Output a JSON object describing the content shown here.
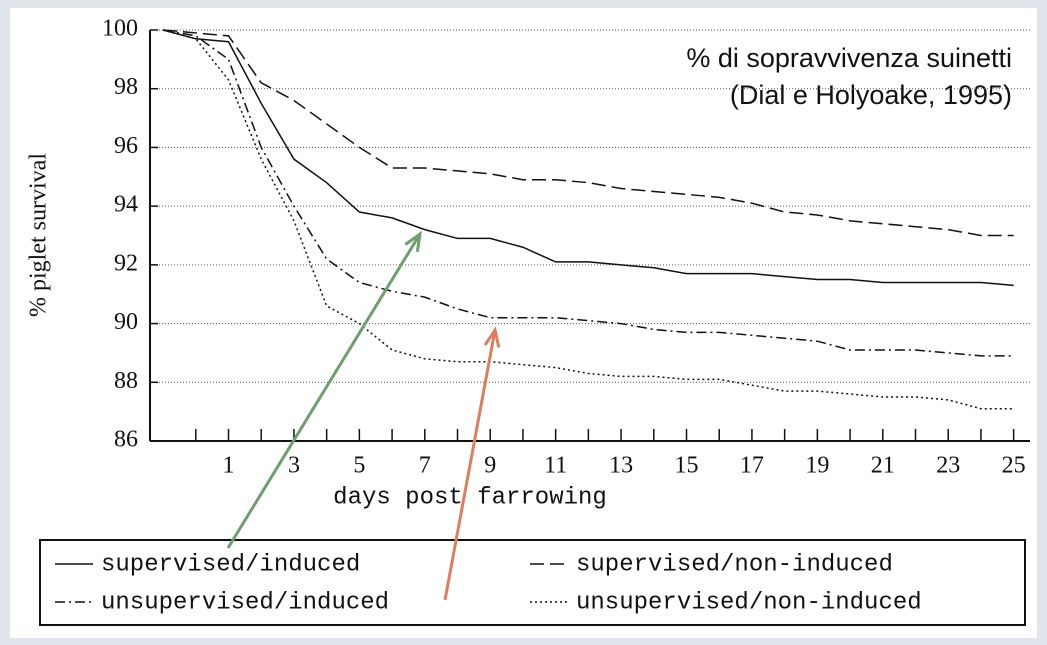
{
  "chart_data": {
    "type": "line",
    "annotation": [
      "% di sopravvivenza suinetti",
      "(Dial e Holyoake, 1995)"
    ],
    "xlabel": "days post farrowing",
    "ylabel": "% piglet survival",
    "x": [
      -1,
      0,
      1,
      2,
      3,
      4,
      5,
      6,
      7,
      8,
      9,
      10,
      11,
      12,
      13,
      14,
      15,
      16,
      17,
      18,
      19,
      20,
      21,
      22,
      23,
      24,
      25
    ],
    "series": [
      {
        "name": "supervised/induced",
        "color": "#111111",
        "linestyle": "solid",
        "values": [
          100,
          99.7,
          99.6,
          97.5,
          95.6,
          94.8,
          93.8,
          93.6,
          93.2,
          92.9,
          92.9,
          92.6,
          92.1,
          92.1,
          92.0,
          91.9,
          91.7,
          91.7,
          91.7,
          91.6,
          91.5,
          91.5,
          91.4,
          91.4,
          91.4,
          91.4,
          91.3
        ]
      },
      {
        "name": "supervised/non-induced",
        "color": "#111111",
        "linestyle": "dashed",
        "values": [
          100,
          99.9,
          99.8,
          98.2,
          97.6,
          96.8,
          96.0,
          95.3,
          95.3,
          95.2,
          95.1,
          94.9,
          94.9,
          94.8,
          94.6,
          94.5,
          94.4,
          94.3,
          94.1,
          93.8,
          93.7,
          93.5,
          93.4,
          93.3,
          93.2,
          93.0,
          93.0
        ]
      },
      {
        "name": "unsupervised/induced",
        "color": "#111111",
        "linestyle": "dashdot",
        "values": [
          100,
          99.8,
          99.0,
          96.0,
          94.0,
          92.2,
          91.4,
          91.1,
          90.9,
          90.5,
          90.2,
          90.2,
          90.2,
          90.1,
          90.0,
          89.8,
          89.7,
          89.7,
          89.6,
          89.5,
          89.4,
          89.1,
          89.1,
          89.1,
          89.0,
          88.9,
          88.9
        ]
      },
      {
        "name": "unsupervised/non-induced",
        "color": "#111111",
        "linestyle": "dotted",
        "values": [
          100,
          99.7,
          98.3,
          95.6,
          93.5,
          90.6,
          90.0,
          89.1,
          88.8,
          88.7,
          88.7,
          88.6,
          88.5,
          88.3,
          88.2,
          88.2,
          88.1,
          88.1,
          87.9,
          87.7,
          87.7,
          87.6,
          87.5,
          87.5,
          87.4,
          87.1,
          87.1
        ]
      }
    ],
    "xlim": [
      -1.4,
      25.5
    ],
    "ylim": [
      86,
      100
    ],
    "xticks": [
      1,
      3,
      5,
      7,
      9,
      11,
      13,
      15,
      17,
      19,
      21,
      23,
      25
    ],
    "xticks_minor": [
      0,
      2,
      4,
      6,
      8,
      10,
      12,
      14,
      16,
      18,
      20,
      22,
      24
    ],
    "yticks": [
      86,
      88,
      90,
      92,
      94,
      96,
      98,
      100
    ],
    "grid": true,
    "legend": "bottom"
  }
}
